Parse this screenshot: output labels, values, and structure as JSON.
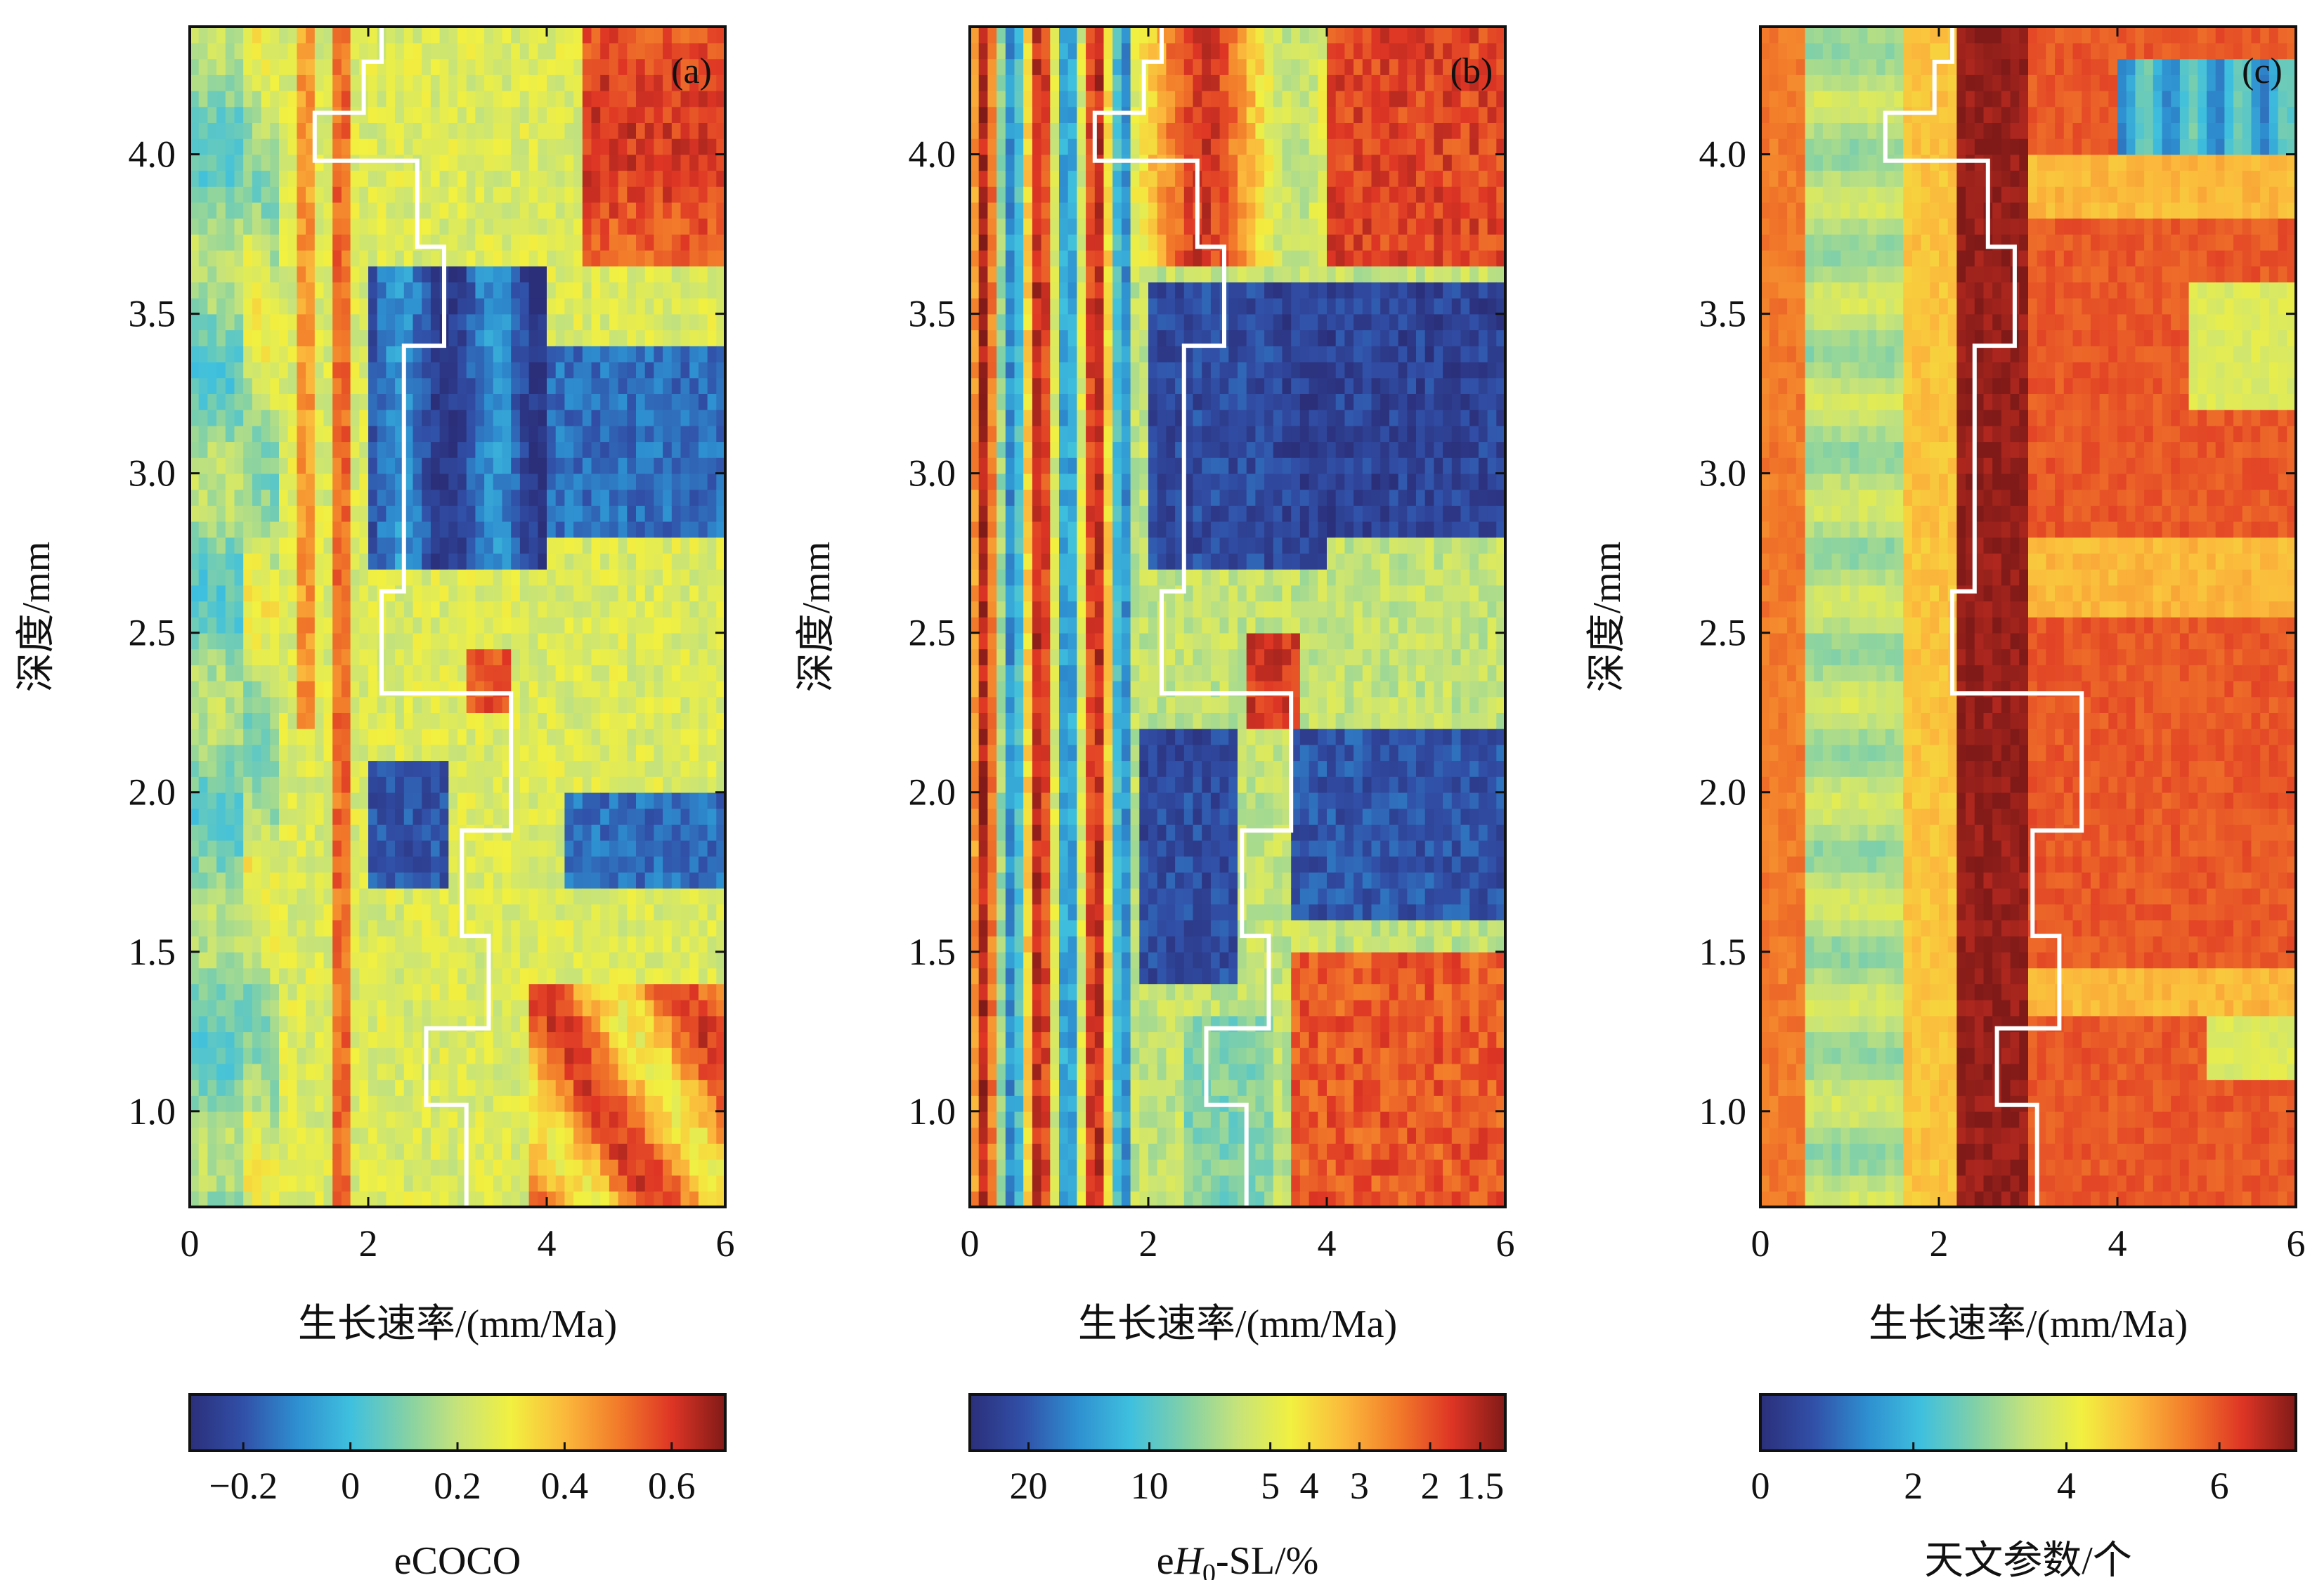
{
  "chart_data": [
    {
      "panel": "(a)",
      "type": "heatmap",
      "xlabel": "生长速率/(mm/Ma)",
      "ylabel": "深度/mm",
      "xlim": [
        0,
        6
      ],
      "ylim": [
        0.7,
        4.4
      ],
      "x_ticks": [
        "0",
        "2",
        "4",
        "6"
      ],
      "y_ticks": [
        "1.0",
        "1.5",
        "2.0",
        "2.5",
        "3.0",
        "3.5",
        "4.0"
      ],
      "colorbar": {
        "label": "eCOCO",
        "ticks": [
          "−0.2",
          "0",
          "0.2",
          "0.4",
          "0.6"
        ],
        "range": [
          -0.3,
          0.7
        ],
        "colormap": [
          "#2b2f7a",
          "#3150a8",
          "#2e8fd0",
          "#3fc0de",
          "#80d0a8",
          "#c6e37a",
          "#f2f040",
          "#fbb93c",
          "#f27b2a",
          "#de3525",
          "#801a18"
        ]
      },
      "description_ridges": "high values near 1.7 mm/Ma and 4.5–6 mm/Ma above 3.7 mm depth; low values 2–4 mm/Ma between 2.7–3.6 mm depth",
      "path_color": "#ffffff"
    },
    {
      "panel": "(b)",
      "type": "heatmap",
      "xlabel": "生长速率/(mm/Ma)",
      "ylabel": "深度/mm",
      "xlim": [
        0,
        6
      ],
      "ylim": [
        0.7,
        4.4
      ],
      "x_ticks": [
        "0",
        "2",
        "4",
        "6"
      ],
      "y_ticks": [
        "1.0",
        "1.5",
        "2.0",
        "2.5",
        "3.0",
        "3.5",
        "4.0"
      ],
      "colorbar": {
        "label_prefix": "e",
        "label_italic": "H",
        "label_sub": "0",
        "label_suffix": "-SL/%",
        "ticks": [
          "20",
          "10",
          "5",
          "4",
          "3",
          "2",
          "1.5"
        ],
        "colormap": [
          "#2b2f7a",
          "#3150a8",
          "#2e8fd0",
          "#3fc0de",
          "#80d0a8",
          "#c6e37a",
          "#f2f040",
          "#fbb93c",
          "#f27b2a",
          "#de3525",
          "#801a18"
        ]
      },
      "path_color": "#ffffff"
    },
    {
      "panel": "(c)",
      "type": "heatmap",
      "xlabel": "生长速率/(mm/Ma)",
      "ylabel": "深度/mm",
      "xlim": [
        0,
        6
      ],
      "ylim": [
        0.7,
        4.4
      ],
      "x_ticks": [
        "0",
        "2",
        "4",
        "6"
      ],
      "y_ticks": [
        "1.0",
        "1.5",
        "2.0",
        "2.5",
        "3.0",
        "3.5",
        "4.0"
      ],
      "colorbar": {
        "label": "天文参数/个",
        "ticks": [
          "0",
          "2",
          "4",
          "6"
        ],
        "range": [
          0,
          7
        ],
        "colormap": [
          "#2b2f7a",
          "#3150a8",
          "#2e8fd0",
          "#3fc0de",
          "#80d0a8",
          "#c6e37a",
          "#f2f040",
          "#fbb93c",
          "#f27b2a",
          "#de3525",
          "#801a18"
        ]
      },
      "path_color": "#ffffff"
    }
  ],
  "optimal_path": {
    "comment_units": "x in mm/Ma, y in mm",
    "points": [
      [
        3.1,
        0.7
      ],
      [
        3.1,
        1.02
      ],
      [
        2.65,
        1.02
      ],
      [
        2.65,
        1.26
      ],
      [
        3.35,
        1.26
      ],
      [
        3.35,
        1.55
      ],
      [
        3.05,
        1.55
      ],
      [
        3.05,
        1.88
      ],
      [
        3.6,
        1.88
      ],
      [
        3.6,
        2.31
      ],
      [
        2.15,
        2.31
      ],
      [
        2.15,
        2.63
      ],
      [
        2.4,
        2.63
      ],
      [
        2.4,
        3.4
      ],
      [
        2.85,
        3.4
      ],
      [
        2.85,
        3.71
      ],
      [
        2.55,
        3.71
      ],
      [
        2.55,
        3.98
      ],
      [
        1.4,
        3.98
      ],
      [
        1.4,
        4.13
      ],
      [
        1.95,
        4.13
      ],
      [
        1.95,
        4.29
      ],
      [
        2.15,
        4.29
      ],
      [
        2.15,
        4.4
      ]
    ]
  }
}
